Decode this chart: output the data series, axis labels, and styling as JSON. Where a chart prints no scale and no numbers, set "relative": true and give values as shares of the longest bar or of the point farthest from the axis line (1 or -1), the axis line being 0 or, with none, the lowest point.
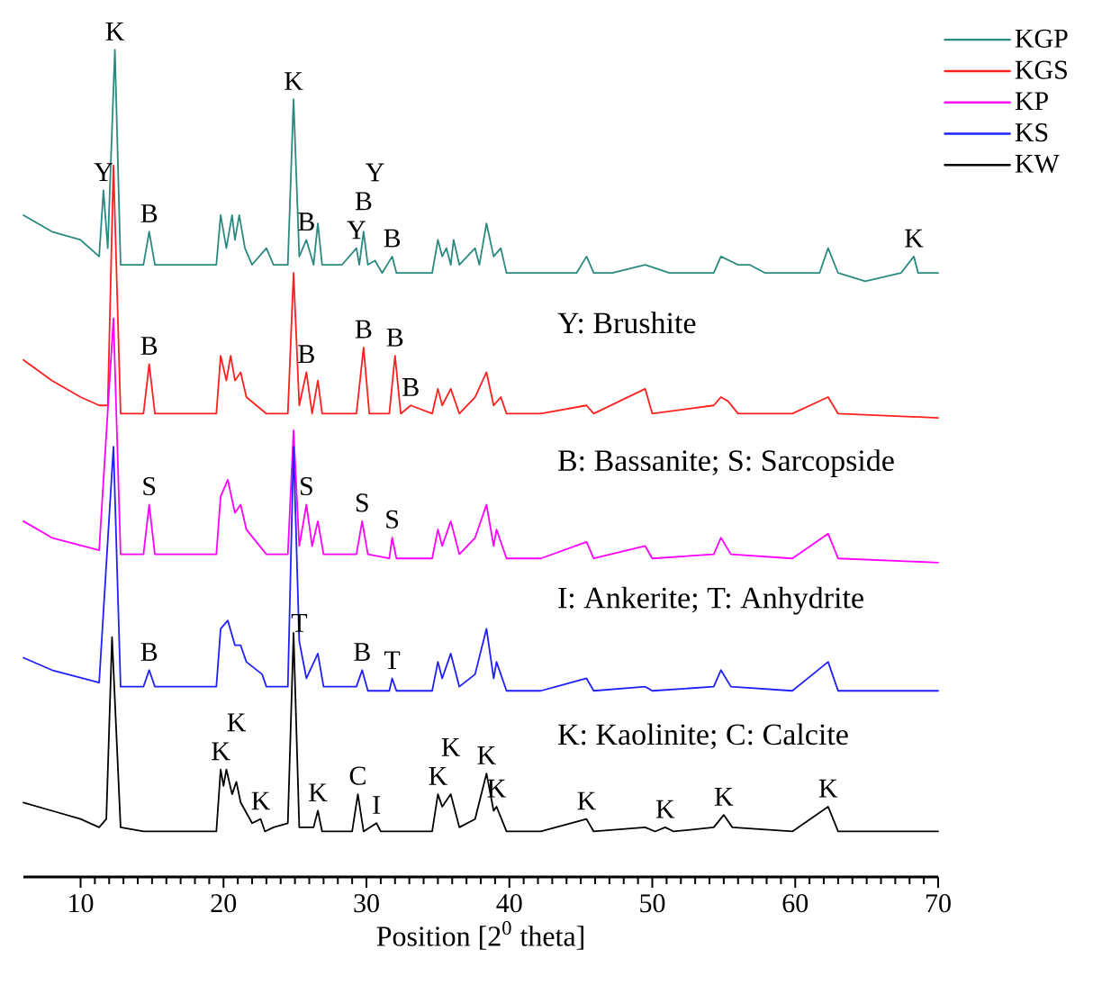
{
  "chart_data": {
    "type": "line",
    "relative": true,
    "xlabel": "Position [2$^{0}$ theta]",
    "xlim": [
      6,
      70
    ],
    "xticks": [
      10,
      20,
      30,
      40,
      50,
      60,
      70
    ],
    "legend": "top right",
    "series": [
      {
        "name": "KGP",
        "color": "#2a8a80",
        "x": [
          6.0,
          8,
          10,
          11.3,
          11.6,
          11.9,
          12.4,
          12.8,
          14.4,
          14.8,
          15.2,
          17,
          19.5,
          19.8,
          20.2,
          20.6,
          20.8,
          21.1,
          21.5,
          22.0,
          23.0,
          23.5,
          24.5,
          24.9,
          25.3,
          25.8,
          26.3,
          26.6,
          26.9,
          28.3,
          29.3,
          29.5,
          29.8,
          30.1,
          30.6,
          31.1,
          31.8,
          32.1,
          34.6,
          35.0,
          35.3,
          35.6,
          35.9,
          36.1,
          36.5,
          37.6,
          37.9,
          38.4,
          38.9,
          39.4,
          39.8,
          42.2,
          44.7,
          45.4,
          45.9,
          47.2,
          49.5,
          51.2,
          54.3,
          54.8,
          56.0,
          56.8,
          57.9,
          59.8,
          61.7,
          62.3,
          63.0,
          64.9,
          67.4,
          68.3,
          68.6,
          70
        ],
        "values": [
          0.8,
          0.78,
          0.77,
          0.75,
          0.83,
          0.76,
          1.0,
          0.74,
          0.74,
          0.78,
          0.74,
          0.74,
          0.74,
          0.8,
          0.76,
          0.8,
          0.77,
          0.8,
          0.76,
          0.74,
          0.76,
          0.74,
          0.74,
          0.94,
          0.75,
          0.77,
          0.74,
          0.79,
          0.74,
          0.74,
          0.76,
          0.74,
          0.78,
          0.74,
          0.745,
          0.73,
          0.75,
          0.73,
          0.73,
          0.77,
          0.75,
          0.76,
          0.74,
          0.77,
          0.74,
          0.76,
          0.74,
          0.79,
          0.75,
          0.76,
          0.73,
          0.73,
          0.73,
          0.75,
          0.73,
          0.73,
          0.74,
          0.73,
          0.73,
          0.75,
          0.74,
          0.74,
          0.73,
          0.73,
          0.73,
          0.76,
          0.73,
          0.72,
          0.73,
          0.75,
          0.73,
          0.73
        ]
      },
      {
        "name": "KGS",
        "color": "#ff2020",
        "x": [
          6.0,
          8,
          10,
          11.3,
          11.9,
          12.3,
          12.8,
          14.4,
          14.8,
          15.2,
          19.5,
          19.8,
          20.2,
          20.5,
          20.8,
          21.2,
          21.6,
          23.0,
          24.5,
          24.9,
          25.3,
          25.8,
          26.2,
          26.6,
          26.9,
          29.3,
          29.8,
          30.2,
          31.6,
          32.0,
          32.4,
          33.1,
          34.6,
          35.0,
          35.3,
          35.9,
          36.5,
          37.6,
          38.4,
          38.9,
          39.4,
          39.8,
          42.2,
          45.4,
          45.9,
          49.5,
          50.0,
          54.3,
          54.8,
          55.3,
          56.0,
          59.8,
          62.3,
          63.0,
          70
        ],
        "values": [
          0.625,
          0.6,
          0.58,
          0.57,
          0.57,
          0.86,
          0.56,
          0.56,
          0.62,
          0.56,
          0.56,
          0.63,
          0.6,
          0.63,
          0.6,
          0.61,
          0.58,
          0.56,
          0.56,
          0.73,
          0.57,
          0.61,
          0.56,
          0.6,
          0.56,
          0.56,
          0.64,
          0.56,
          0.56,
          0.63,
          0.56,
          0.57,
          0.56,
          0.59,
          0.57,
          0.59,
          0.56,
          0.58,
          0.61,
          0.57,
          0.58,
          0.56,
          0.56,
          0.57,
          0.56,
          0.59,
          0.56,
          0.57,
          0.58,
          0.575,
          0.56,
          0.56,
          0.58,
          0.56,
          0.555
        ]
      },
      {
        "name": "KP",
        "color": "#ff00ff",
        "x": [
          6.0,
          8,
          11.3,
          12.3,
          12.8,
          14.4,
          14.8,
          15.2,
          19.5,
          19.8,
          20.3,
          20.8,
          21.2,
          21.6,
          23.0,
          24.5,
          24.9,
          25.3,
          25.8,
          26.2,
          26.6,
          27,
          29.3,
          29.7,
          30.1,
          31.6,
          31.8,
          32.1,
          34.6,
          35.0,
          35.3,
          35.9,
          36.5,
          37.6,
          38.4,
          38.9,
          39.1,
          39.8,
          42.2,
          45.4,
          45.9,
          49.5,
          50,
          54.3,
          54.8,
          55.5,
          59.8,
          62.3,
          63,
          70
        ],
        "values": [
          0.43,
          0.41,
          0.395,
          0.675,
          0.39,
          0.39,
          0.45,
          0.39,
          0.39,
          0.46,
          0.48,
          0.44,
          0.45,
          0.42,
          0.39,
          0.39,
          0.54,
          0.4,
          0.45,
          0.4,
          0.43,
          0.39,
          0.39,
          0.43,
          0.39,
          0.385,
          0.41,
          0.385,
          0.385,
          0.42,
          0.4,
          0.43,
          0.39,
          0.41,
          0.45,
          0.4,
          0.42,
          0.385,
          0.385,
          0.405,
          0.385,
          0.4,
          0.385,
          0.39,
          0.41,
          0.39,
          0.385,
          0.415,
          0.385,
          0.38
        ]
      },
      {
        "name": "KS",
        "color": "#2020ff",
        "x": [
          6,
          8,
          11.3,
          12.3,
          12.8,
          14.4,
          14.8,
          15.2,
          19.5,
          19.8,
          20.3,
          20.8,
          21.2,
          21.6,
          22.7,
          23.0,
          24.5,
          24.9,
          25.3,
          25.8,
          26.6,
          27,
          29.3,
          29.7,
          30.1,
          31.6,
          31.8,
          32.1,
          34.6,
          35.0,
          35.3,
          35.9,
          36.5,
          37.6,
          38.4,
          38.9,
          39.1,
          39.8,
          42.2,
          45.4,
          45.9,
          49.5,
          50,
          54.3,
          54.8,
          55.5,
          59.8,
          62.3,
          63,
          70
        ],
        "values": [
          0.265,
          0.25,
          0.235,
          0.52,
          0.23,
          0.23,
          0.25,
          0.23,
          0.23,
          0.3,
          0.31,
          0.28,
          0.28,
          0.26,
          0.245,
          0.23,
          0.23,
          0.52,
          0.285,
          0.24,
          0.27,
          0.23,
          0.23,
          0.25,
          0.225,
          0.225,
          0.24,
          0.225,
          0.225,
          0.26,
          0.24,
          0.27,
          0.23,
          0.245,
          0.3,
          0.24,
          0.26,
          0.225,
          0.225,
          0.24,
          0.225,
          0.23,
          0.225,
          0.23,
          0.25,
          0.23,
          0.225,
          0.26,
          0.225,
          0.225
        ]
      },
      {
        "name": "KW",
        "color": "#000000",
        "x": [
          6,
          8,
          10,
          11.3,
          11.8,
          12.2,
          12.8,
          14.4,
          19.5,
          19.8,
          20.0,
          20.2,
          20.6,
          20.9,
          21.2,
          22.0,
          22.6,
          22.9,
          23.5,
          24.5,
          24.9,
          25.3,
          26.3,
          26.6,
          26.9,
          29.0,
          29.4,
          29.8,
          30.7,
          31,
          34.6,
          35.0,
          35.3,
          35.9,
          36.5,
          37.6,
          38.4,
          38.9,
          39.1,
          39.8,
          42.2,
          45.4,
          45.9,
          49.5,
          50.2,
          50.9,
          51.5,
          54.3,
          55.0,
          55.6,
          59.8,
          62.3,
          63,
          70
        ],
        "values": [
          0.09,
          0.08,
          0.07,
          0.06,
          0.07,
          0.29,
          0.06,
          0.055,
          0.055,
          0.13,
          0.11,
          0.13,
          0.1,
          0.115,
          0.09,
          0.065,
          0.07,
          0.055,
          0.06,
          0.065,
          0.295,
          0.06,
          0.06,
          0.08,
          0.055,
          0.055,
          0.1,
          0.055,
          0.065,
          0.055,
          0.055,
          0.1,
          0.085,
          0.1,
          0.06,
          0.07,
          0.125,
          0.08,
          0.085,
          0.055,
          0.055,
          0.07,
          0.055,
          0.06,
          0.055,
          0.06,
          0.055,
          0.06,
          0.075,
          0.06,
          0.055,
          0.085,
          0.055,
          0.055
        ]
      }
    ],
    "annotations": [
      {
        "text": "K",
        "x": 12.4,
        "y": 1.0
      },
      {
        "text": "Y",
        "x": 11.6,
        "y": 0.83
      },
      {
        "text": "B",
        "x": 14.8,
        "y": 0.78
      },
      {
        "text": "K",
        "x": 24.9,
        "y": 0.94
      },
      {
        "text": "B",
        "x": 25.8,
        "y": 0.77
      },
      {
        "text": "Y",
        "x": 29.3,
        "y": 0.76
      },
      {
        "text": "B",
        "x": 29.8,
        "y": 0.78
      },
      {
        "text": "Y",
        "x": 30.6,
        "y": 0.745
      },
      {
        "text": "B",
        "x": 31.8,
        "y": 0.75
      },
      {
        "text": "K",
        "x": 68.3,
        "y": 0.75
      },
      "Y: Brushite",
      {
        "text": "B",
        "x": 14.8,
        "y": 0.62
      },
      {
        "text": "B",
        "x": 25.8,
        "y": 0.61
      },
      {
        "text": "B",
        "x": 29.8,
        "y": 0.64
      },
      {
        "text": "B",
        "x": 32.0,
        "y": 0.63
      },
      {
        "text": "B",
        "x": 33.1,
        "y": 0.57
      },
      "B: Bassanite; S: Sarcopside",
      {
        "text": "S",
        "x": 14.8,
        "y": 0.45
      },
      {
        "text": "S",
        "x": 25.8,
        "y": 0.45
      },
      {
        "text": "S",
        "x": 29.7,
        "y": 0.43
      },
      {
        "text": "S",
        "x": 31.8,
        "y": 0.41
      },
      "I: Ankerite; T: Anhydrite",
      {
        "text": "B",
        "x": 14.8,
        "y": 0.25
      },
      {
        "text": "T",
        "x": 25.3,
        "y": 0.285
      },
      {
        "text": "B",
        "x": 29.7,
        "y": 0.25
      },
      {
        "text": "T",
        "x": 31.8,
        "y": 0.24
      },
      "K: Kaolinite; C: Calcite",
      {
        "text": "K",
        "x": 19.8,
        "y": 0.13
      },
      {
        "text": "K",
        "x": 20.9,
        "y": 0.115
      },
      {
        "text": "K",
        "x": 22.6,
        "y": 0.07
      },
      {
        "text": "K",
        "x": 26.6,
        "y": 0.08
      },
      {
        "text": "C",
        "x": 29.4,
        "y": 0.1
      },
      {
        "text": "I",
        "x": 30.7,
        "y": 0.065
      },
      {
        "text": "K",
        "x": 35.0,
        "y": 0.1
      },
      {
        "text": "K",
        "x": 35.9,
        "y": 0.1
      },
      {
        "text": "K",
        "x": 38.4,
        "y": 0.125
      },
      {
        "text": "K",
        "x": 39.1,
        "y": 0.085
      },
      {
        "text": "K",
        "x": 45.4,
        "y": 0.07
      },
      {
        "text": "K",
        "x": 50.9,
        "y": 0.06
      },
      {
        "text": "K",
        "x": 55.0,
        "y": 0.075
      },
      {
        "text": "K",
        "x": 62.3,
        "y": 0.085
      }
    ]
  }
}
